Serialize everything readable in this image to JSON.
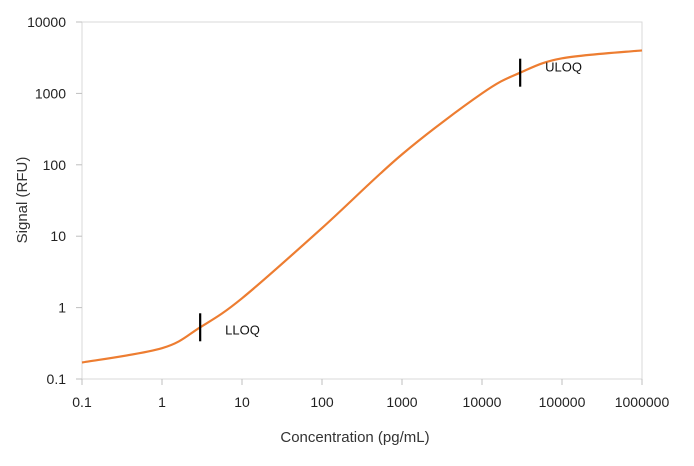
{
  "chart_data": {
    "type": "line",
    "title": "",
    "xlabel": "Concentration (pg/mL)",
    "ylabel": "Signal (RFU)",
    "xscale": "log",
    "yscale": "log",
    "xlim": [
      0.1,
      1000000
    ],
    "ylim": [
      0.1,
      10000
    ],
    "xticks": [
      "0.1",
      "1",
      "10",
      "100",
      "1000",
      "10000",
      "100000",
      "1000000"
    ],
    "yticks": [
      "0.1",
      "1",
      "10",
      "100",
      "1000",
      "10000"
    ],
    "grid": false,
    "series": [
      {
        "color": "#ED7D31",
        "x": [
          0.1,
          1,
          3,
          10,
          100,
          1000,
          10000,
          30000,
          100000,
          1000000
        ],
        "y": [
          0.17,
          0.27,
          0.53,
          1.35,
          13,
          140,
          1000,
          1950,
          3100,
          4000
        ]
      }
    ],
    "annotations": [
      {
        "label": "LLOQ",
        "x": 3,
        "y": 0.53
      },
      {
        "label": "ULOQ",
        "x": 30000,
        "y": 1950
      }
    ]
  }
}
